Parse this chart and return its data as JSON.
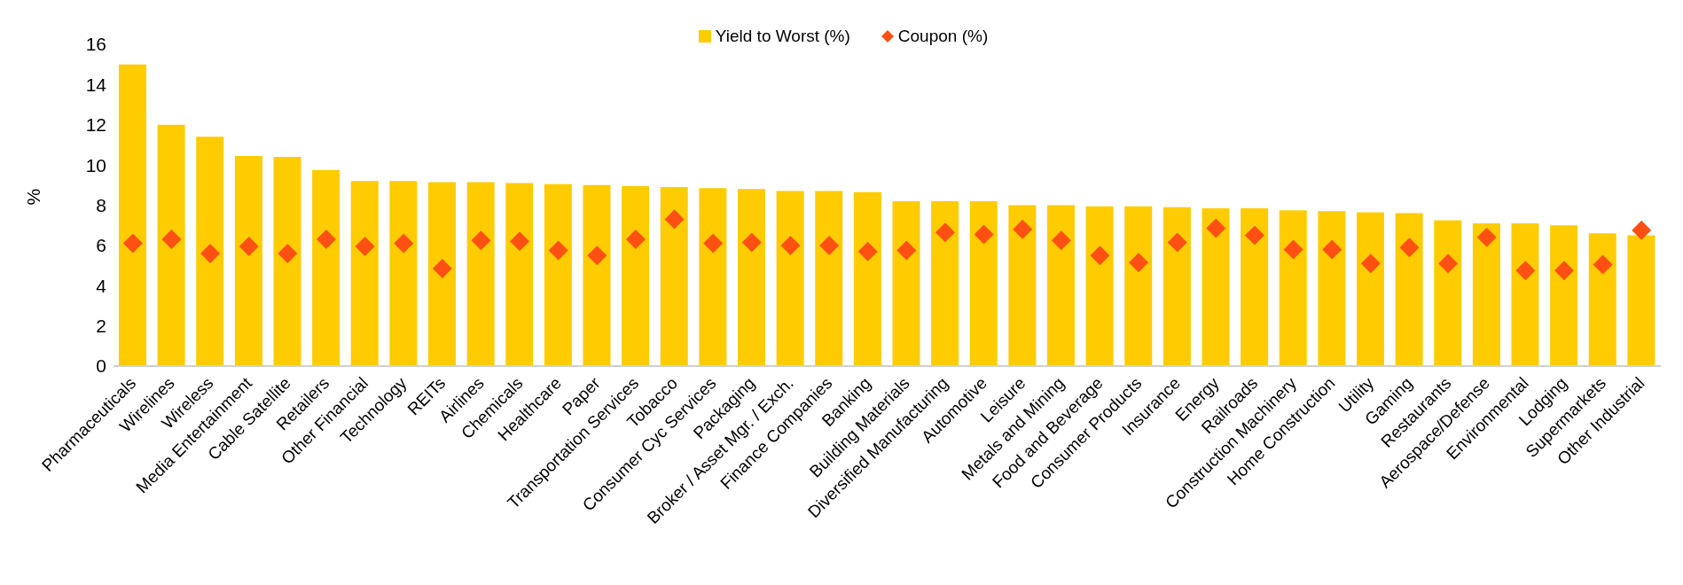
{
  "chart_data": {
    "type": "bar",
    "ylabel": "%",
    "categories": [
      "Pharmaceuticals",
      "Wirelines",
      "Wireless",
      "Media Entertainment",
      "Cable Satellite",
      "Retailers",
      "Other Financial",
      "Technology",
      "REITs",
      "Airlines",
      "Chemicals",
      "Healthcare",
      "Paper",
      "Transportation Services",
      "Tobacco",
      "Consumer Cyc Services",
      "Packaging",
      "Broker / Asset Mgr. / Exch.",
      "Finance Companies",
      "Banking",
      "Building Materials",
      "Diversified Manufacturing",
      "Automotive",
      "Leisure",
      "Metals and Mining",
      "Food and Beverage",
      "Consumer Products",
      "Insurance",
      "Energy",
      "Railroads",
      "Construction Machinery",
      "Home Construction",
      "Utility",
      "Gaming",
      "Restaurants",
      "Aerospace/Defense",
      "Environmental",
      "Lodging",
      "Supermarkets",
      "Other Industrial"
    ],
    "series": [
      {
        "name": "Yield to Worst (%)",
        "color": "#fecc00",
        "values": [
          15.0,
          12.0,
          11.4,
          10.45,
          10.4,
          9.75,
          9.2,
          9.2,
          9.15,
          9.15,
          9.1,
          9.05,
          9.0,
          8.95,
          8.9,
          8.85,
          8.8,
          8.7,
          8.7,
          8.65,
          8.2,
          8.2,
          8.2,
          8.0,
          8.0,
          7.95,
          7.95,
          7.9,
          7.85,
          7.85,
          7.75,
          7.7,
          7.65,
          7.6,
          7.25,
          7.1,
          7.1,
          7.0,
          6.6,
          6.5
        ]
      },
      {
        "name": "Coupon (%)",
        "type": "scatter",
        "marker": "diamond",
        "color": "#ff5014",
        "values": [
          6.1,
          6.3,
          5.6,
          5.95,
          5.6,
          6.3,
          5.95,
          6.1,
          4.85,
          6.25,
          6.2,
          5.75,
          5.5,
          6.3,
          7.3,
          6.1,
          6.15,
          6.0,
          6.0,
          5.7,
          5.75,
          6.65,
          6.55,
          6.8,
          6.25,
          5.5,
          5.15,
          6.15,
          6.85,
          6.5,
          5.8,
          5.8,
          5.1,
          5.9,
          5.1,
          6.4,
          4.75,
          4.75,
          5.05,
          6.75
        ]
      }
    ],
    "ylim": [
      0,
      16
    ],
    "yticks": [
      0,
      2,
      4,
      6,
      8,
      10,
      12,
      14,
      16
    ],
    "legend": "top"
  }
}
